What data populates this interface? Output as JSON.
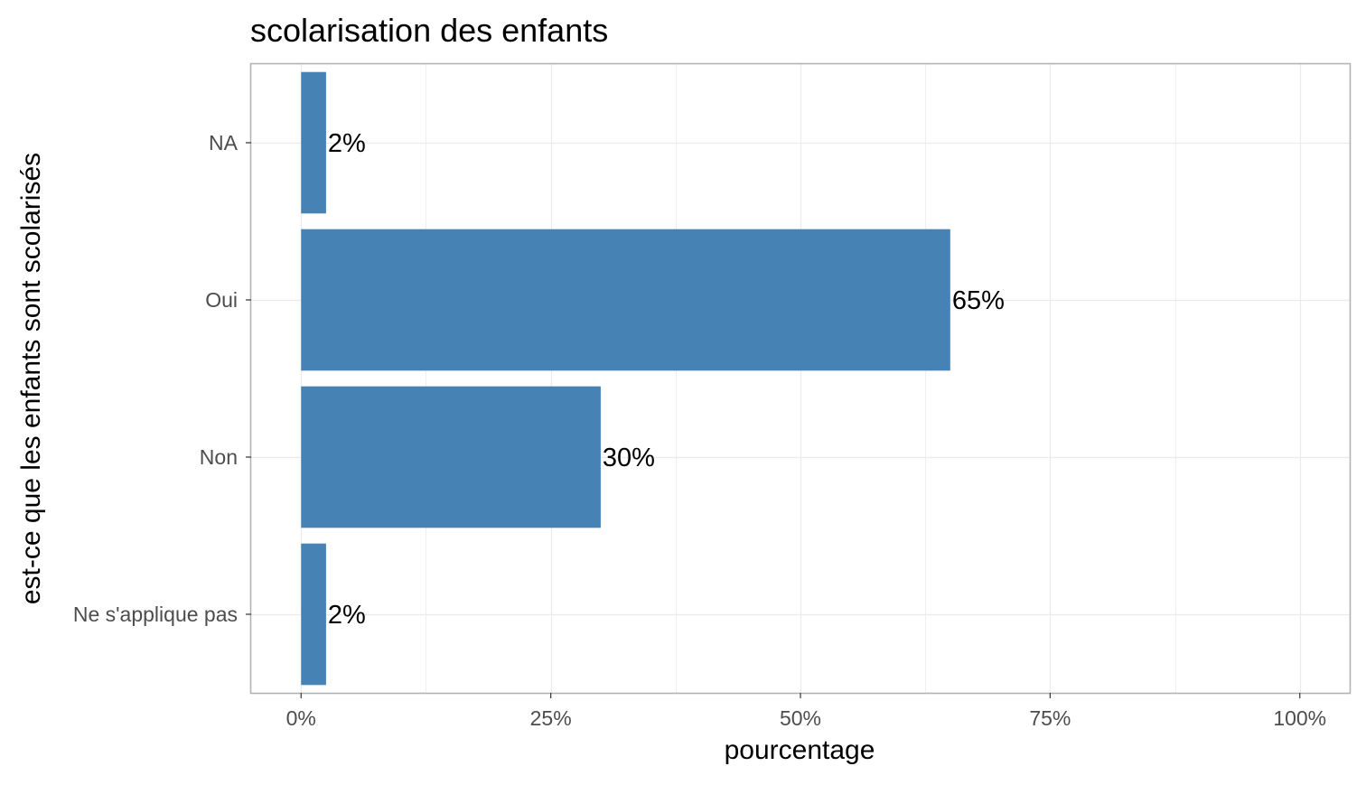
{
  "chart_data": {
    "type": "bar",
    "orientation": "horizontal",
    "title": "scolarisation des enfants",
    "xlabel": "pourcentage",
    "ylabel": "est-ce que les enfants sont scolarisés",
    "categories": [
      "NA",
      "Oui",
      "Non",
      "Ne s'applique pas"
    ],
    "values": [
      2.5,
      65,
      30,
      2.5
    ],
    "data_labels": [
      "2%",
      "65%",
      "30%",
      "2%"
    ],
    "xlim": [
      -5,
      105
    ],
    "x_ticks": [
      0,
      25,
      50,
      75,
      100
    ],
    "x_tick_labels": [
      "0%",
      "25%",
      "50%",
      "75%",
      "100%"
    ],
    "grid": true,
    "legend": "none",
    "bar_color": "#4682b4",
    "panel_border_color": "#b3b3b3",
    "grid_color": "#ebebeb"
  }
}
